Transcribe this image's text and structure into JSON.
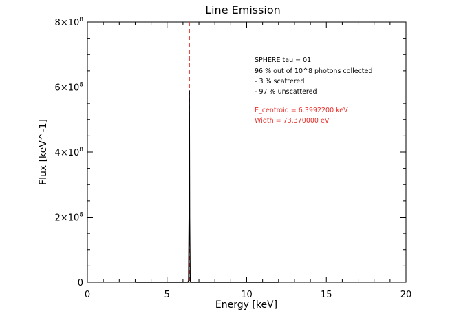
{
  "chart_data": {
    "type": "line",
    "title": "Line Emission",
    "xlabel": "Energy [keV]",
    "ylabel": "Flux [keV^-1]",
    "xlim": [
      0,
      20
    ],
    "ylim": [
      0,
      800000000
    ],
    "x_ticks": [
      {
        "value": 0,
        "label": "0"
      },
      {
        "value": 5,
        "label": "5"
      },
      {
        "value": 10,
        "label": "10"
      },
      {
        "value": 15,
        "label": "15"
      },
      {
        "value": 20,
        "label": "20"
      }
    ],
    "y_ticks": [
      {
        "value": 0,
        "label": "0",
        "exp": ""
      },
      {
        "value": 200000000,
        "label": "2×10",
        "exp": "8"
      },
      {
        "value": 400000000,
        "label": "4×10",
        "exp": "8"
      },
      {
        "value": 600000000,
        "label": "6×10",
        "exp": "8"
      },
      {
        "value": 800000000,
        "label": "8×10",
        "exp": "8"
      }
    ],
    "series": [
      {
        "color": "#000000",
        "x": [
          3.0,
          6.0,
          6.3,
          6.35,
          6.38,
          6.4,
          6.42,
          6.45,
          6.5,
          6.8,
          12.0
        ],
        "y": [
          0,
          0,
          0,
          5000000,
          200000000,
          590000000,
          200000000,
          5000000,
          0,
          0,
          0
        ]
      }
    ],
    "centroid_line": {
      "x": 6.3992,
      "color": "#e8322e",
      "style": "dashed"
    },
    "annotations": {
      "black": [
        "SPHERE tau = 01",
        "96 % out of 10^8 photons collected",
        "- 3 % scattered",
        "- 97 % unscattered"
      ],
      "red": [
        "E_centroid = 6.3992200 keV",
        "Width = 73.370000 eV"
      ],
      "black_color": "#000000",
      "red_color": "#e8322e"
    },
    "grid": false,
    "legend": "none"
  }
}
